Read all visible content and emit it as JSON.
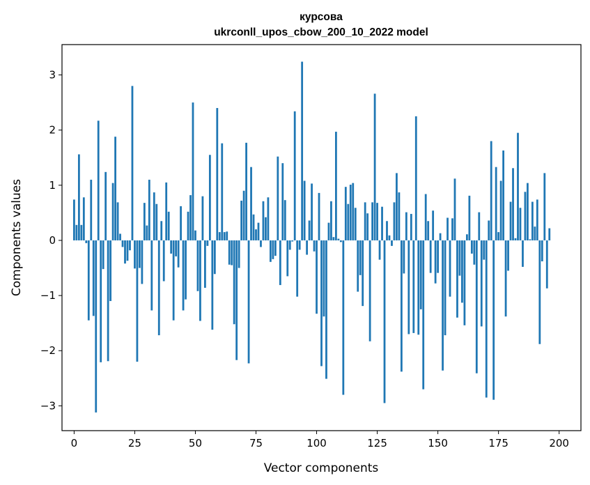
{
  "chart_data": {
    "type": "bar",
    "title_line1": "курсова",
    "title_line2": "ukrconll_upos_cbow_200_10_2022 model",
    "xlabel": "Vector components",
    "ylabel": "Components values",
    "xlim": [
      -5,
      209
    ],
    "ylim": [
      -3.45,
      3.55
    ],
    "xticks": [
      0,
      25,
      50,
      75,
      100,
      125,
      150,
      175,
      200
    ],
    "yticks": [
      -3,
      -2,
      -1,
      0,
      1,
      2,
      3
    ],
    "bar_color": "#1f77b4",
    "values": [
      0.74,
      0.28,
      1.56,
      0.28,
      0.78,
      -0.05,
      -1.45,
      1.1,
      -1.37,
      -3.12,
      2.17,
      -2.21,
      -0.52,
      1.24,
      -2.19,
      -1.1,
      1.04,
      1.88,
      0.69,
      0.12,
      -0.12,
      -0.42,
      -0.37,
      -0.18,
      2.8,
      -0.51,
      -2.2,
      -0.5,
      -0.79,
      0.68,
      0.27,
      1.1,
      -1.27,
      0.87,
      0.66,
      -1.72,
      0.35,
      -0.74,
      1.05,
      0.52,
      -0.24,
      -1.45,
      -0.29,
      -0.49,
      0.62,
      -1.27,
      -1.07,
      0.52,
      0.82,
      2.5,
      0.18,
      -0.92,
      -1.46,
      0.8,
      -0.86,
      -0.1,
      1.55,
      -1.62,
      -0.61,
      2.4,
      0.15,
      1.76,
      0.15,
      0.16,
      -0.44,
      -0.45,
      -1.52,
      -2.17,
      -0.5,
      0.72,
      0.9,
      1.77,
      -2.23,
      1.33,
      0.47,
      0.2,
      0.32,
      -0.12,
      0.71,
      0.42,
      0.78,
      -0.39,
      -0.34,
      -0.28,
      1.52,
      -0.81,
      1.4,
      0.73,
      -0.65,
      -0.17,
      -0.02,
      2.34,
      -1.02,
      -0.17,
      3.24,
      1.08,
      -0.26,
      0.36,
      1.03,
      -0.2,
      -1.33,
      0.86,
      -2.28,
      -1.38,
      -2.51,
      0.32,
      0.71,
      0.06,
      1.97,
      0.03,
      -0.03,
      -2.8,
      0.97,
      0.66,
      1.01,
      1.04,
      0.59,
      -0.93,
      -0.63,
      -1.19,
      0.69,
      0.49,
      -1.83,
      0.69,
      2.66,
      0.68,
      -0.35,
      0.61,
      -2.95,
      0.35,
      0.09,
      -0.1,
      0.69,
      1.22,
      0.87,
      -2.38,
      -0.6,
      0.51,
      -1.7,
      0.48,
      -1.68,
      2.25,
      -1.71,
      -1.25,
      -2.7,
      0.84,
      0.35,
      -0.59,
      0.54,
      -0.78,
      -0.59,
      0.13,
      -2.36,
      -1.72,
      0.41,
      -1.02,
      0.4,
      1.12,
      -1.4,
      -0.64,
      -1.13,
      -1.54,
      0.11,
      0.81,
      -0.24,
      -0.44,
      -2.41,
      0.51,
      -1.56,
      -0.35,
      -2.85,
      0.36,
      1.8,
      -2.89,
      1.33,
      0.15,
      1.08,
      1.63,
      -1.38,
      -0.55,
      0.7,
      1.31,
      0.04,
      1.95,
      0.59,
      -0.48,
      0.88,
      1.04,
      0.02,
      0.7,
      0.25,
      0.74,
      -1.88,
      -0.38,
      1.22,
      -0.87,
      0.22
    ]
  }
}
